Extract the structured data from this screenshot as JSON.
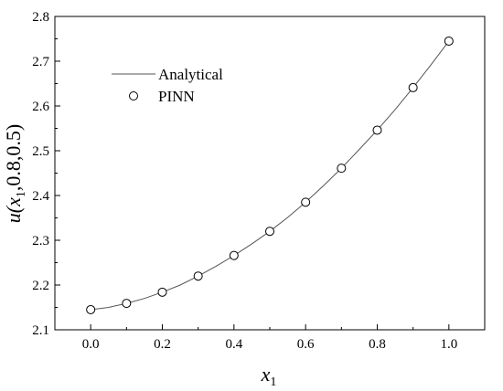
{
  "chart_data": {
    "type": "line",
    "xlim": [
      -0.1,
      1.1
    ],
    "ylim": [
      2.1,
      2.8
    ],
    "x_ticks": [
      "0.0",
      "0.2",
      "0.4",
      "0.6",
      "0.8",
      "1.0"
    ],
    "y_ticks": [
      "2.1",
      "2.2",
      "2.3",
      "2.4",
      "2.5",
      "2.6",
      "2.7",
      "2.8"
    ],
    "xlabel": {
      "main": "x",
      "sub": "1"
    },
    "ylabel": {
      "pre": "u(x",
      "sub": "1",
      "post": ",0.8,0.5)"
    },
    "legend_position": "upper-left",
    "grid": false,
    "series": [
      {
        "name": "Analytical",
        "style": "line",
        "color": "#555555",
        "x": [
          0.0,
          0.05,
          0.1,
          0.15,
          0.2,
          0.25,
          0.3,
          0.35,
          0.4,
          0.45,
          0.5,
          0.55,
          0.6,
          0.65,
          0.7,
          0.75,
          0.8,
          0.85,
          0.9,
          0.95,
          1.0
        ],
        "y": [
          2.145,
          2.15,
          2.159,
          2.17,
          2.184,
          2.2,
          2.22,
          2.242,
          2.266,
          2.292,
          2.32,
          2.351,
          2.385,
          2.422,
          2.461,
          2.503,
          2.546,
          2.592,
          2.641,
          2.692,
          2.745
        ]
      },
      {
        "name": "PINN",
        "style": "marker",
        "marker": "open-circle",
        "color": "#000000",
        "x": [
          0.0,
          0.1,
          0.2,
          0.3,
          0.4,
          0.5,
          0.6,
          0.7,
          0.8,
          0.9,
          1.0
        ],
        "y": [
          2.145,
          2.159,
          2.184,
          2.22,
          2.266,
          2.32,
          2.385,
          2.461,
          2.546,
          2.641,
          2.745
        ]
      }
    ]
  }
}
